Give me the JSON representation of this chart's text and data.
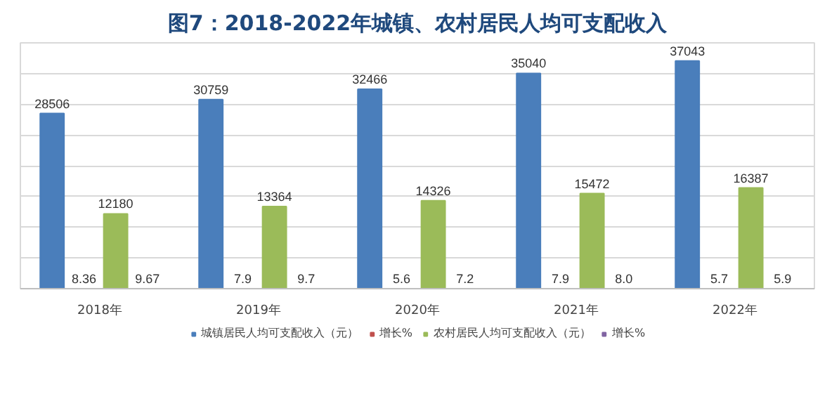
{
  "chart_data": {
    "type": "bar",
    "title": "图7：2018-2022年城镇、农村居民人均可支配收入",
    "categories": [
      "2018年",
      "2019年",
      "2020年",
      "2021年",
      "2022年"
    ],
    "series": [
      {
        "name": "城镇居民人均可支配收入（元）",
        "color": "#4a7ebb",
        "values": [
          28506,
          30759,
          32466,
          35040,
          37043
        ]
      },
      {
        "name": "增长%",
        "color": "#c0504d",
        "values": [
          8.36,
          7.9,
          5.6,
          7.9,
          5.7
        ]
      },
      {
        "name": "农村居民人均可支配收入（元）",
        "color": "#9bbb59",
        "values": [
          12180,
          13364,
          14326,
          15472,
          16387
        ]
      },
      {
        "name": "增长%",
        "color": "#8064a2",
        "values": [
          9.67,
          9.7,
          7.2,
          8.0,
          5.9
        ],
        "value_labels": [
          "9.67",
          "9.7",
          "7.2",
          "8.0",
          "5.9"
        ]
      }
    ],
    "ylim": [
      0,
      40000
    ],
    "yticks": [
      {
        "value": 0,
        "label": null
      },
      {
        "value": 5000,
        "label": null
      },
      {
        "value": 10000,
        "label": null
      },
      {
        "value": 15000,
        "label": null
      },
      {
        "value": 20000,
        "label": null
      },
      {
        "value": 25000,
        "label": null
      },
      {
        "value": 30000,
        "label": null
      },
      {
        "value": 35000,
        "label": null
      },
      {
        "value": 40000,
        "label": null
      }
    ],
    "tick_labels": "x",
    "grid": "y",
    "legend": "bottom",
    "data_labels": true
  }
}
